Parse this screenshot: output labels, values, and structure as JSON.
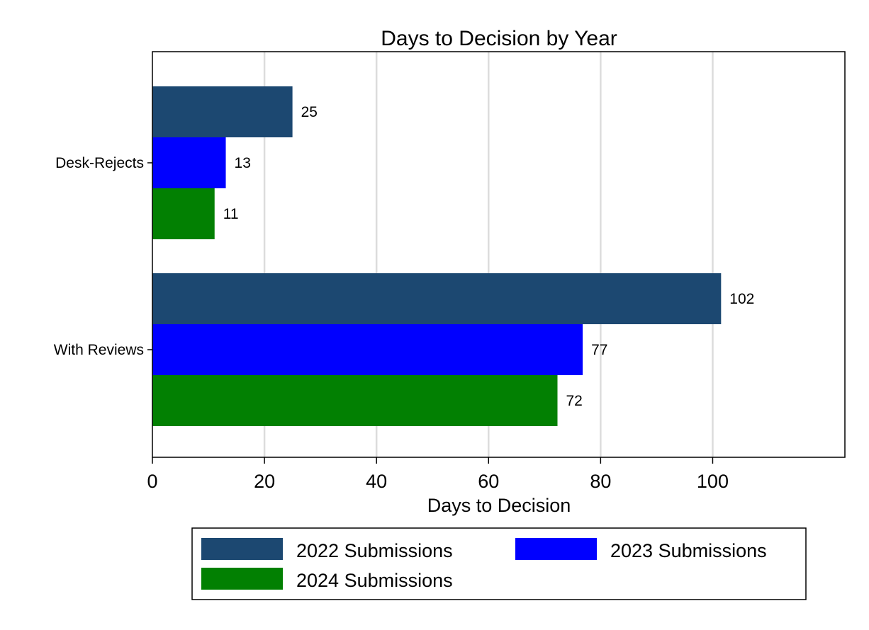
{
  "chart_data": {
    "type": "bar",
    "orientation": "horizontal",
    "title": "Days to Decision by Year",
    "xlabel": "Days to Decision",
    "ylabel": "",
    "categories": [
      "Desk-Rejects",
      "With Reviews"
    ],
    "series": [
      {
        "name": "2022 Submissions",
        "color": "#1c4871",
        "values": [
          25,
          101.5
        ],
        "labels": [
          "25",
          "102"
        ]
      },
      {
        "name": "2023 Submissions",
        "color": "#0000ff",
        "values": [
          13.1,
          76.8
        ],
        "labels": [
          "13",
          "77"
        ]
      },
      {
        "name": "2024 Submissions",
        "color": "#028002",
        "values": [
          11.1,
          72.3
        ],
        "labels": [
          "11",
          "72"
        ]
      }
    ],
    "xlim": [
      0,
      123.6
    ],
    "xticks": [
      0,
      20,
      40,
      60,
      80,
      100
    ],
    "grid": true,
    "legend_position": "bottom"
  }
}
